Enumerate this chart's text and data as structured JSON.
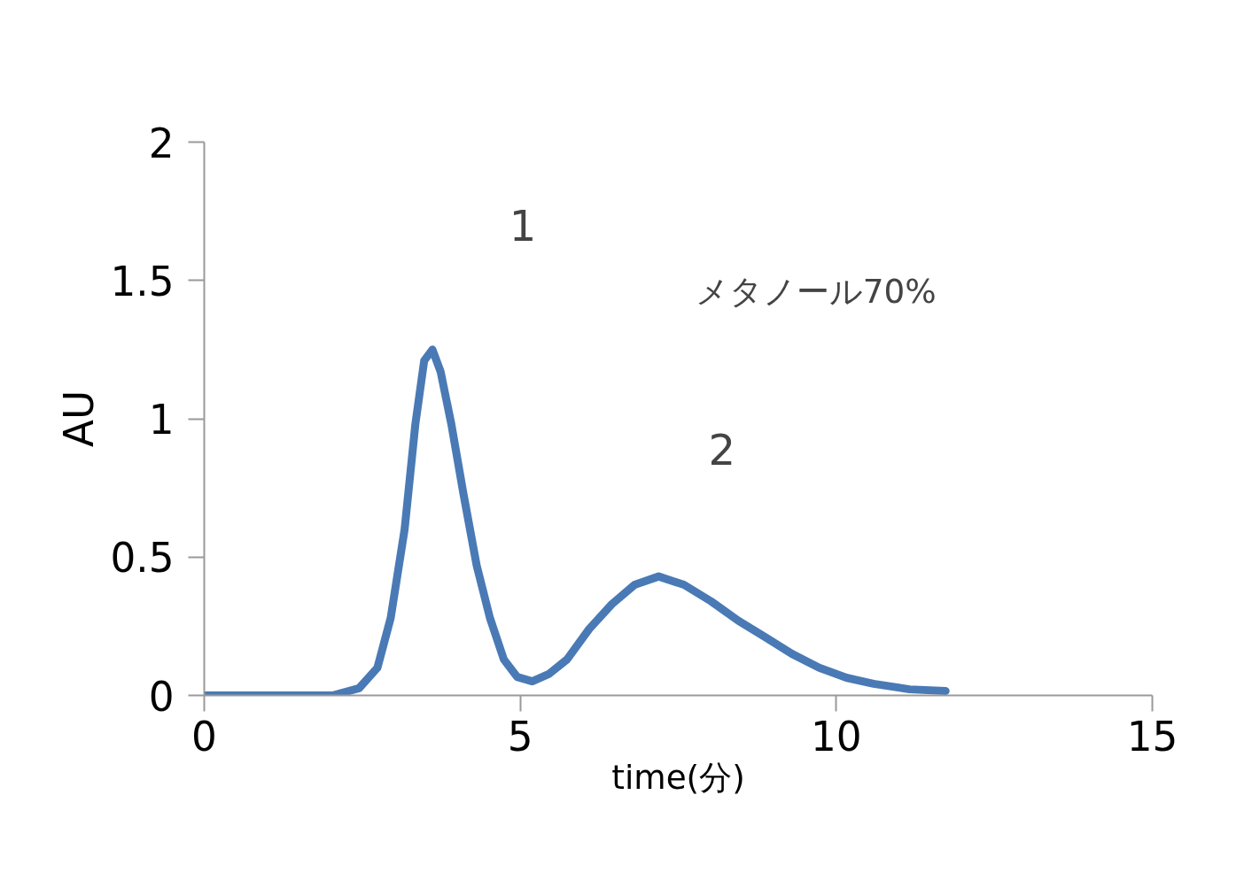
{
  "chart_data": {
    "type": "line",
    "xlabel": "time(分)",
    "ylabel": "AU",
    "x": [
      0,
      2.03,
      2.45,
      2.74,
      2.95,
      3.17,
      3.34,
      3.48,
      3.61,
      3.74,
      3.91,
      4.1,
      4.31,
      4.52,
      4.74,
      4.95,
      5.19,
      5.45,
      5.74,
      6.09,
      6.45,
      6.81,
      7.19,
      7.59,
      8.02,
      8.45,
      8.88,
      9.3,
      9.73,
      10.16,
      10.59,
      11.16,
      11.73
    ],
    "series": [
      {
        "color": "#4a7ab5",
        "values": [
          0,
          0,
          0.026,
          0.1,
          0.28,
          0.6,
          0.98,
          1.21,
          1.25,
          1.17,
          0.98,
          0.73,
          0.47,
          0.28,
          0.13,
          0.067,
          0.051,
          0.077,
          0.13,
          0.24,
          0.33,
          0.4,
          0.43,
          0.4,
          0.34,
          0.27,
          0.21,
          0.15,
          0.1,
          0.064,
          0.042,
          0.022,
          0.016
        ]
      }
    ],
    "xlim": [
      0,
      15
    ],
    "xticks": [
      0,
      5,
      10,
      15
    ],
    "ylim": [
      0,
      2
    ],
    "yticks": [
      0,
      0.5,
      1,
      1.5,
      2
    ],
    "grid": false,
    "marker": "none",
    "line_style": "solid",
    "annotations": [
      "1",
      "メタノール70%",
      "2"
    ]
  }
}
